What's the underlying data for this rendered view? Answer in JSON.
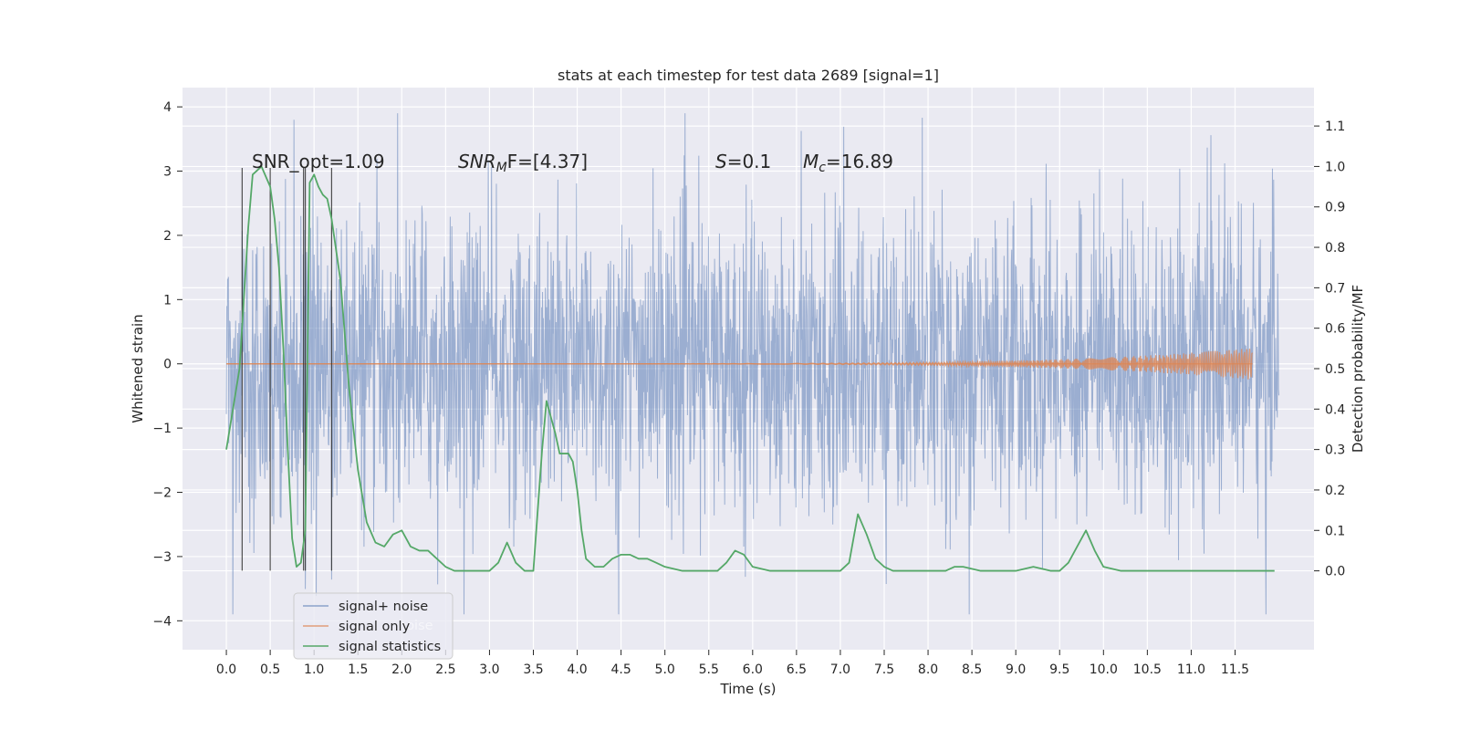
{
  "chart_data": {
    "type": "line",
    "title": "stats at each timestep for test data 2689 [signal=1]",
    "xlabel": "Time (s)",
    "ylabel_left": "Whitened strain",
    "ylabel_right": "Detection probability/MF",
    "xlim": [
      -0.5,
      12.4
    ],
    "ylim_left": [
      -4.45,
      4.3
    ],
    "ylim_right": [
      -0.195,
      1.195
    ],
    "x_ticks": [
      "0.0",
      "0.5",
      "1.0",
      "1.5",
      "2.0",
      "2.5",
      "3.0",
      "3.5",
      "4.0",
      "4.5",
      "5.0",
      "5.5",
      "6.0",
      "6.5",
      "7.0",
      "7.5",
      "8.0",
      "8.5",
      "9.0",
      "9.5",
      "10.0",
      "10.5",
      "11.0",
      "11.5"
    ],
    "y_ticks_left": [
      "4",
      "3",
      "2",
      "1",
      "0",
      "−1",
      "−2",
      "−3",
      "−4"
    ],
    "y_ticks_right": [
      "1.1",
      "1.0",
      "0.9",
      "0.8",
      "0.7",
      "0.6",
      "0.5",
      "0.4",
      "0.3",
      "0.2",
      "0.1",
      "0.0"
    ],
    "grid": true,
    "annotations": {
      "snr_opt": "SNR_opt=1.09",
      "snr_mf_base": "SNR",
      "snr_mf_sub": "M",
      "snr_mf_rest": "F=[4.37]",
      "s_italic": "S",
      "s_rest": "=0.1",
      "mc_italic": "M",
      "mc_sub": "c",
      "mc_rest": "=16.89"
    },
    "legend": {
      "placement": "lower-left",
      "entries": [
        "signal+ noise",
        "signal only",
        "signal statistics"
      ],
      "ghost_text": "noise"
    },
    "series": [
      {
        "name": "signal+ noise",
        "axis": "left",
        "color": "#4c72b0",
        "x_range": [
          0.0,
          12.0
        ],
        "typical_amplitude": 1.8,
        "peak_amplitude": 3.9,
        "note_values": "dense whitened noise sampled densely"
      },
      {
        "name": "signal only",
        "axis": "left",
        "color": "#dd8452",
        "x_range": [
          0.0,
          11.7
        ],
        "chirp_end_amplitude": 0.25
      },
      {
        "name": "signal statistics",
        "axis": "right",
        "color": "#55a868",
        "x": [
          0.0,
          0.15,
          0.25,
          0.3,
          0.4,
          0.5,
          0.55,
          0.6,
          0.65,
          0.7,
          0.75,
          0.8,
          0.85,
          0.9,
          0.95,
          1.0,
          1.05,
          1.1,
          1.15,
          1.2,
          1.3,
          1.4,
          1.5,
          1.6,
          1.7,
          1.8,
          1.9,
          2.0,
          2.1,
          2.2,
          2.3,
          2.4,
          2.5,
          2.6,
          2.8,
          3.0,
          3.1,
          3.2,
          3.3,
          3.4,
          3.5,
          3.6,
          3.65,
          3.7,
          3.75,
          3.8,
          3.9,
          3.95,
          4.0,
          4.05,
          4.1,
          4.2,
          4.3,
          4.4,
          4.5,
          4.6,
          4.7,
          4.8,
          4.9,
          5.0,
          5.2,
          5.4,
          5.6,
          5.7,
          5.8,
          5.9,
          6.0,
          6.2,
          6.4,
          6.6,
          6.8,
          7.0,
          7.1,
          7.2,
          7.3,
          7.4,
          7.5,
          7.6,
          7.8,
          8.0,
          8.2,
          8.3,
          8.4,
          8.6,
          8.8,
          9.0,
          9.2,
          9.4,
          9.5,
          9.6,
          9.7,
          9.8,
          9.9,
          10.0,
          10.2,
          10.5,
          10.8,
          11.0,
          11.5,
          11.95
        ],
        "values": [
          0.3,
          0.5,
          0.85,
          0.98,
          1.0,
          0.95,
          0.87,
          0.75,
          0.55,
          0.3,
          0.08,
          0.01,
          0.02,
          0.1,
          0.96,
          0.98,
          0.95,
          0.93,
          0.92,
          0.87,
          0.72,
          0.45,
          0.25,
          0.12,
          0.07,
          0.06,
          0.09,
          0.1,
          0.06,
          0.05,
          0.05,
          0.03,
          0.01,
          0.0,
          0.0,
          0.0,
          0.02,
          0.07,
          0.02,
          0.0,
          0.0,
          0.3,
          0.42,
          0.38,
          0.34,
          0.29,
          0.29,
          0.27,
          0.2,
          0.1,
          0.03,
          0.01,
          0.01,
          0.03,
          0.04,
          0.04,
          0.03,
          0.03,
          0.02,
          0.01,
          0.0,
          0.0,
          0.0,
          0.02,
          0.05,
          0.04,
          0.01,
          0.0,
          0.0,
          0.0,
          0.0,
          0.0,
          0.02,
          0.14,
          0.09,
          0.03,
          0.01,
          0.0,
          0.0,
          0.0,
          0.0,
          0.01,
          0.01,
          0.0,
          0.0,
          0.0,
          0.01,
          0.0,
          0.0,
          0.02,
          0.06,
          0.1,
          0.05,
          0.01,
          0.0,
          0.0,
          0.0,
          0.0,
          0.0,
          0.0
        ]
      }
    ],
    "vertical_markers": {
      "color": "#333333",
      "x": [
        0.18,
        0.5,
        0.88,
        0.9,
        1.2
      ],
      "y_bottom": -3.22,
      "y_top": 3.05
    }
  },
  "colors": {
    "plot_bg": "#eaeaf2",
    "grid": "#ffffff",
    "noise": "#4c72b0",
    "signal": "#dd8452",
    "statistic": "#55a868",
    "marker": "#333333"
  }
}
